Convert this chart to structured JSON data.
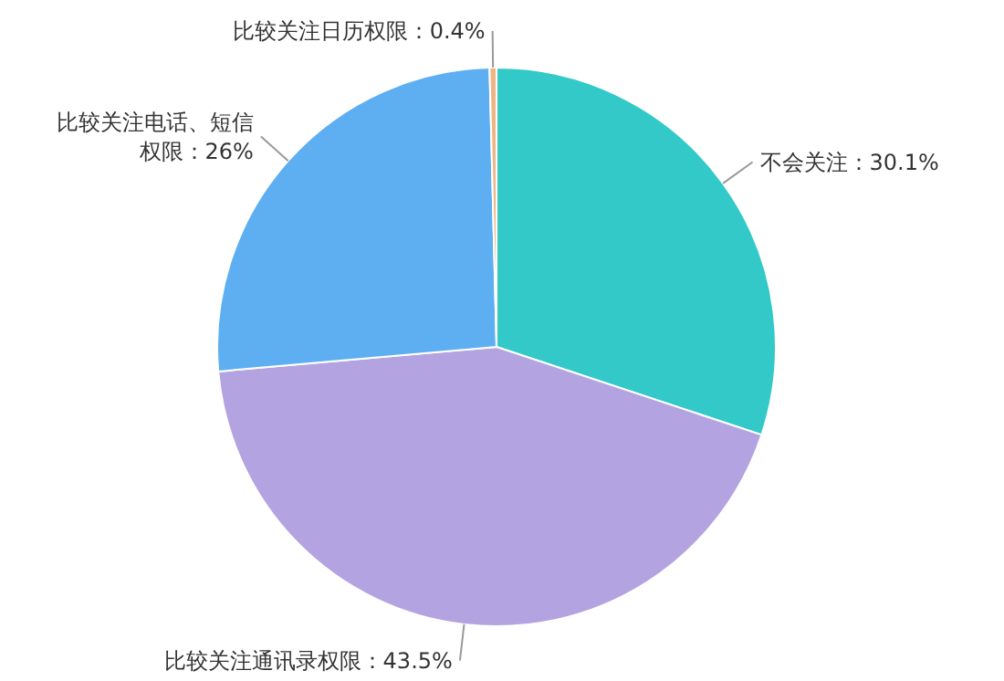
{
  "chart_data": {
    "type": "pie",
    "categories": [
      "不会关注",
      "比较关注通讯录权限",
      "比较关注电话、短信权限",
      "比较关注日历权限"
    ],
    "values": [
      30.1,
      43.5,
      26,
      0.4
    ],
    "value_labels": [
      "：30.1%",
      "：43.5%",
      "：26%",
      "：0.4%"
    ],
    "colors": [
      "#33c9c9",
      "#b4a3e1",
      "#5daff2",
      "#f0b585"
    ]
  }
}
